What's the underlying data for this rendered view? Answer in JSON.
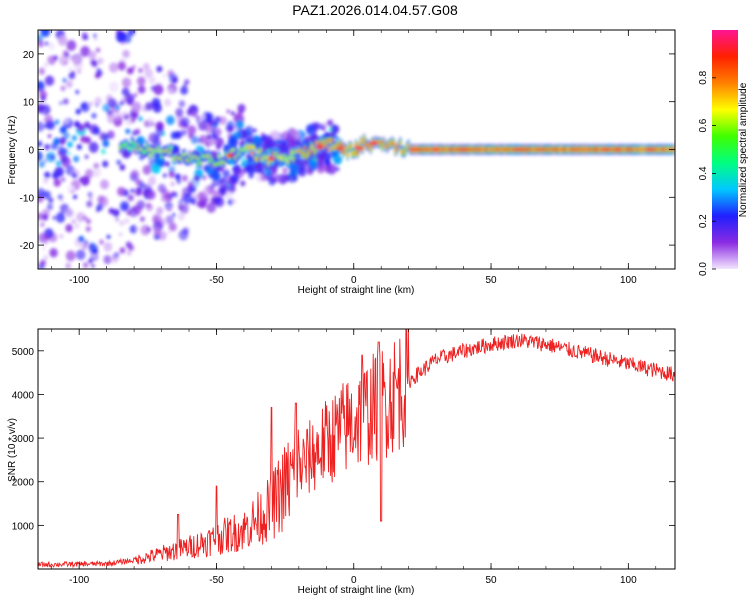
{
  "title": "PAZ1.2026.014.04.57.G08",
  "chart_data": [
    {
      "type": "heatmap",
      "name": "spectrogram",
      "xlabel": "Height of straight line (km)",
      "ylabel": "Frequency (Hz)",
      "xlim": [
        -115,
        117
      ],
      "ylim": [
        -25,
        25
      ],
      "xticks": [
        -100,
        -50,
        0,
        50,
        100
      ],
      "yticks": [
        -20,
        -10,
        0,
        10,
        20
      ],
      "colorbar": {
        "label": "Normalized spectral amplitude",
        "range": [
          0,
          1
        ],
        "ticks": [
          0.0,
          0.2,
          0.4,
          0.6,
          0.8
        ],
        "colors": [
          "#f3e6ff",
          "#8a2be2",
          "#2020ff",
          "#00c8ff",
          "#00ff80",
          "#40ff00",
          "#ffff00",
          "#ff8000",
          "#ff2000",
          "#ff1493"
        ]
      },
      "ridge_center_hz": [
        {
          "h": -80,
          "f": 0.5
        },
        {
          "h": -60,
          "f": -1.5
        },
        {
          "h": -50,
          "f": -2.5
        },
        {
          "h": -40,
          "f": 0
        },
        {
          "h": -30,
          "f": -2
        },
        {
          "h": -20,
          "f": -1
        },
        {
          "h": -10,
          "f": 1
        },
        {
          "h": 0,
          "f": -0.5
        },
        {
          "h": 5,
          "f": 1.5
        },
        {
          "h": 10,
          "f": 1
        },
        {
          "h": 20,
          "f": 0
        },
        {
          "h": 117,
          "f": 0
        }
      ]
    },
    {
      "type": "line",
      "name": "snr",
      "xlabel": "Height of straight line (km)",
      "ylabel": "SNR (10 * v/v)",
      "xlim": [
        -115,
        117
      ],
      "ylim": [
        0,
        5500
      ],
      "xticks": [
        -100,
        -50,
        0,
        50,
        100
      ],
      "yticks": [
        1000,
        2000,
        3000,
        4000,
        5000
      ],
      "color": "#ee2020",
      "envelope": [
        {
          "h": -115,
          "snr": 100
        },
        {
          "h": -90,
          "snr": 120
        },
        {
          "h": -80,
          "snr": 200
        },
        {
          "h": -70,
          "snr": 350
        },
        {
          "h": -60,
          "snr": 500
        },
        {
          "h": -50,
          "snr": 700
        },
        {
          "h": -40,
          "snr": 900
        },
        {
          "h": -30,
          "snr": 1400
        },
        {
          "h": -25,
          "snr": 1900
        },
        {
          "h": -20,
          "snr": 2300
        },
        {
          "h": -10,
          "snr": 2900
        },
        {
          "h": 0,
          "snr": 3400
        },
        {
          "h": 10,
          "snr": 3800
        },
        {
          "h": 20,
          "snr": 4300
        },
        {
          "h": 30,
          "snr": 4800
        },
        {
          "h": 40,
          "snr": 5000
        },
        {
          "h": 50,
          "snr": 5150
        },
        {
          "h": 60,
          "snr": 5250
        },
        {
          "h": 70,
          "snr": 5150
        },
        {
          "h": 80,
          "snr": 5000
        },
        {
          "h": 90,
          "snr": 4850
        },
        {
          "h": 100,
          "snr": 4700
        },
        {
          "h": 110,
          "snr": 4550
        },
        {
          "h": 117,
          "snr": 4450
        }
      ],
      "spikes": [
        {
          "h": -64,
          "snr": 1250
        },
        {
          "h": -50,
          "snr": 1900
        },
        {
          "h": -30,
          "snr": 3700
        },
        {
          "h": -21,
          "snr": 3800
        },
        {
          "h": 9,
          "snr": 5200
        },
        {
          "h": 10,
          "snr": 1100
        },
        {
          "h": 3,
          "snr": 4900
        }
      ]
    }
  ]
}
